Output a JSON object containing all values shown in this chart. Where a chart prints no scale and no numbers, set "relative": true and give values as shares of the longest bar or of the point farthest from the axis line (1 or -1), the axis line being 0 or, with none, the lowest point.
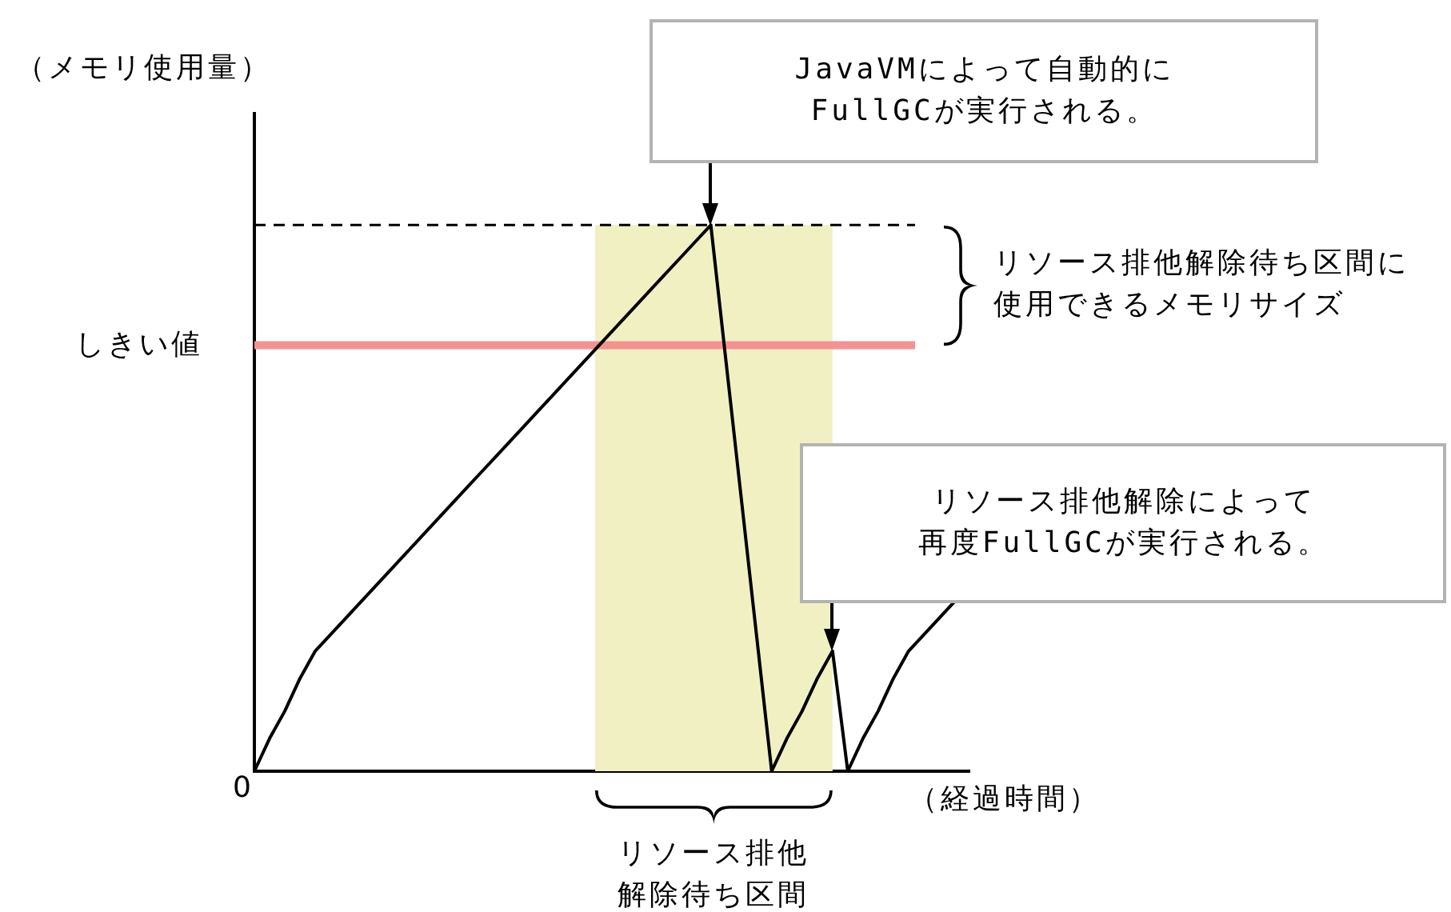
{
  "chart_data": {
    "type": "line",
    "relative": true,
    "ylabel": "（メモリ使用量）",
    "xlabel": "（経過時間）",
    "categories": [
      null,
      null,
      null,
      null,
      null,
      null,
      null,
      null,
      null,
      null,
      null,
      null,
      null,
      null,
      null,
      null,
      null,
      null,
      null,
      null,
      null,
      null,
      null,
      null,
      null,
      null,
      null,
      null,
      null,
      null,
      null,
      null,
      null,
      null,
      null,
      null,
      null,
      null,
      null,
      null,
      null,
      null,
      null,
      null,
      null,
      null,
      null,
      null
    ],
    "values": [
      0,
      0.06,
      0.11,
      0.17,
      0.22,
      0.25,
      0.28,
      0.31,
      0.34,
      0.37,
      0.4,
      0.43,
      0.46,
      0.49,
      0.52,
      0.55,
      0.58,
      0.61,
      0.64,
      0.67,
      0.7,
      0.73,
      0.76,
      0.79,
      0.82,
      0.85,
      0.88,
      0.91,
      0.94,
      0.97,
      1,
      0.75,
      0.5,
      0.25,
      0,
      0.06,
      0.11,
      0.17,
      0.22,
      0,
      0.06,
      0.11,
      0.17,
      0.22,
      0.25,
      0.28,
      0.31,
      null
    ],
    "color": "#000000",
    "ref_lines": [
      {
        "axis": "y",
        "value": 1,
        "color": "#000000",
        "line_style": "dashed"
      },
      {
        "axis": "y",
        "value": 0.78,
        "label": "しきい値",
        "color": "#f79191"
      }
    ],
    "annotations": [
      "JavaVMによって自動的にFullGCが実行される。",
      "リソース排他解除によって再度FullGCが実行される。",
      "0",
      "リソース排他解除待ち区間に使用できるメモリサイズ",
      "リソース排他解除待ち区間"
    ],
    "marker": "none",
    "line_style": "solid"
  }
}
